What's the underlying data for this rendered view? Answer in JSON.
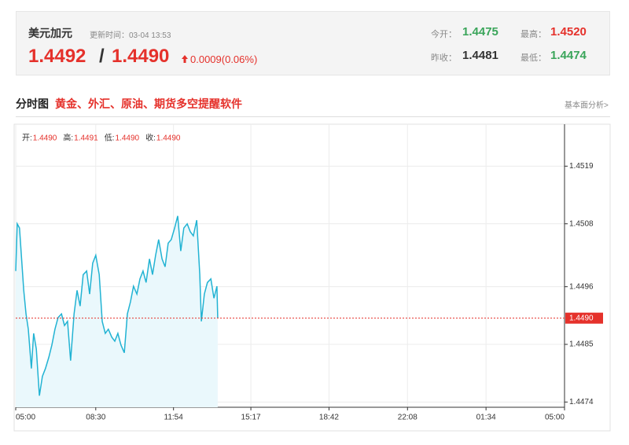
{
  "header": {
    "title": "美元加元",
    "update_time": "更新时间：03-04 13:53",
    "bid": "1.4492",
    "separator": "/",
    "ask": "1.4490",
    "change": "0.0009(0.06%)",
    "stats": [
      {
        "label": "今开：",
        "value": "1.4475"
      },
      {
        "label": "最高：",
        "value": "1.4520"
      },
      {
        "label": "昨收：",
        "value": "1.4481"
      },
      {
        "label": "最低：",
        "value": "1.4474"
      }
    ]
  },
  "section": {
    "title": "分时图",
    "promo": "黄金、外汇、原油、期货多空提醒软件",
    "link": "基本面分析>"
  },
  "chart_data": {
    "type": "line",
    "color": "#22b3d3",
    "area_color": "#eaf8fc",
    "grid": true,
    "ohlc": [
      {
        "label": "开:",
        "value": "1.4490"
      },
      {
        "label": "高:",
        "value": "1.4491"
      },
      {
        "label": "低:",
        "value": "1.4490"
      },
      {
        "label": "收:",
        "value": "1.4490"
      }
    ],
    "x": [
      0,
      4,
      10,
      21,
      27,
      33,
      41,
      47,
      54,
      62,
      70,
      78,
      87,
      95,
      103,
      111,
      120,
      128,
      136,
      144,
      153,
      161,
      169,
      177,
      186,
      194,
      202,
      210,
      219,
      227,
      235,
      243,
      252,
      260,
      268,
      276,
      285,
      293,
      301,
      309,
      318,
      326,
      334,
      342,
      351,
      359,
      367,
      375,
      384,
      392,
      400,
      408,
      417,
      425,
      433,
      441,
      450,
      458,
      466,
      475,
      483,
      487,
      495,
      503,
      512,
      520,
      528,
      530
    ],
    "values": [
      1.4499,
      1.4508,
      1.45072,
      1.44953,
      1.44908,
      1.44879,
      1.44804,
      1.44871,
      1.44841,
      1.44752,
      1.44789,
      1.44804,
      1.44826,
      1.44849,
      1.44879,
      1.44901,
      1.44908,
      1.44886,
      1.44894,
      1.44819,
      1.44908,
      1.44953,
      1.44923,
      1.44983,
      1.4499,
      1.44946,
      1.45005,
      1.4502,
      1.44983,
      1.44894,
      1.44871,
      1.44879,
      1.44864,
      1.44856,
      1.44871,
      1.44849,
      1.44834,
      1.44908,
      1.44931,
      1.44961,
      1.44946,
      1.44975,
      1.4499,
      1.44968,
      1.45013,
      1.44983,
      1.4502,
      1.4505,
      1.45013,
      1.44998,
      1.45043,
      1.4505,
      1.45072,
      1.45095,
      1.45028,
      1.45072,
      1.4508,
      1.45065,
      1.45057,
      1.45087,
      1.44983,
      1.44894,
      1.44946,
      1.44968,
      1.44975,
      1.44938,
      1.44961,
      1.44901
    ],
    "xlim": [
      0,
      1440
    ],
    "xticks": [
      {
        "value": 0,
        "label": "05:00"
      },
      {
        "value": 210,
        "label": "08:30"
      },
      {
        "value": 414,
        "label": "11:54"
      },
      {
        "value": 617,
        "label": "15:17"
      },
      {
        "value": 822,
        "label": "18:42"
      },
      {
        "value": 1028,
        "label": "22:08"
      },
      {
        "value": 1234,
        "label": "01:34"
      },
      {
        "value": 1440,
        "label": "05:00"
      }
    ],
    "ylim": [
      1.4473,
      1.4527
    ],
    "yticks": [
      1.4474,
      1.4485,
      1.4496,
      1.4508,
      1.4519
    ],
    "current_price": {
      "value": 1.449,
      "label": "1.4490"
    }
  }
}
